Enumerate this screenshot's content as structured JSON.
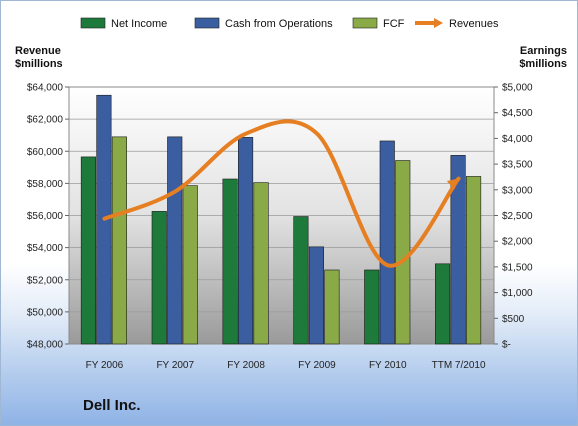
{
  "company": "Dell Inc.",
  "chart_data": {
    "type": "bar",
    "categories": [
      "FY 2006",
      "FY 2007",
      "FY 2008",
      "FY 2009",
      "FY 2010",
      "TTM 7/2010"
    ],
    "series": [
      {
        "name": "Net Income",
        "axis": "right",
        "color": "#1e7a3a",
        "values": [
          3640,
          2580,
          3210,
          2480,
          1440,
          1560
        ]
      },
      {
        "name": "Cash from Operations",
        "axis": "right",
        "color": "#3a5ea0",
        "values": [
          4840,
          4030,
          4020,
          1890,
          3950,
          3670
        ]
      },
      {
        "name": "FCF",
        "axis": "right",
        "color": "#8aaa48",
        "values": [
          4030,
          3080,
          3140,
          1440,
          3570,
          3260
        ]
      },
      {
        "name": "Revenues",
        "type": "line",
        "axis": "left",
        "color": "#e67e22",
        "values": [
          55800,
          57500,
          61100,
          61100,
          52900,
          58300
        ]
      }
    ],
    "left_axis": {
      "label": "Revenue\n$millions",
      "range": [
        48000,
        64000
      ],
      "ticks": [
        "$48,000",
        "$50,000",
        "$52,000",
        "$54,000",
        "$56,000",
        "$58,000",
        "$60,000",
        "$62,000",
        "$64,000"
      ]
    },
    "right_axis": {
      "label": "Earnings\n$millions",
      "range": [
        0,
        5000
      ],
      "ticks": [
        "$-",
        "$500",
        "$1,000",
        "$1,500",
        "$2,000",
        "$2,500",
        "$3,000",
        "$3,500",
        "$4,000",
        "$4,500",
        "$5,000"
      ]
    },
    "legend_position": "top",
    "grid": true
  }
}
